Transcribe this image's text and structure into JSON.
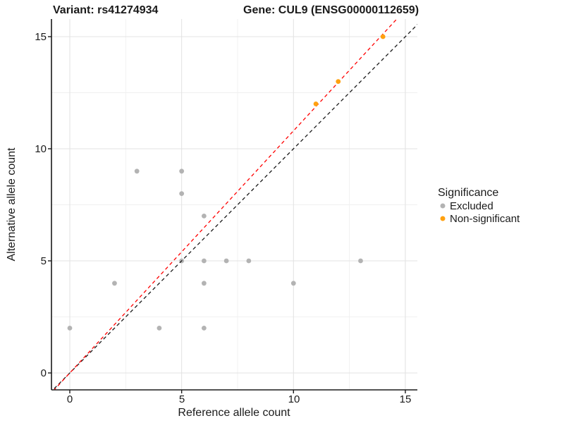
{
  "titles": {
    "variant": "Variant: rs41274934",
    "gene": "Gene: CUL9 (ENSG00000112659)"
  },
  "chart_data": {
    "type": "scatter",
    "title_left": "Variant: rs41274934",
    "title_right": "Gene: CUL9 (ENSG00000112659)",
    "xlabel": "Reference allele count",
    "ylabel": "Alternative allele count",
    "xlim": [
      -0.82,
      15.55
    ],
    "ylim": [
      -0.75,
      15.79
    ],
    "xticks": [
      0,
      5,
      10,
      15
    ],
    "yticks": [
      0,
      5,
      10,
      15
    ],
    "minor_gridlines_x": [
      2.5,
      7.5,
      12.5
    ],
    "minor_gridlines_y": [
      2.5,
      7.5,
      12.5
    ],
    "grid": "on",
    "series": [
      {
        "name": "Excluded",
        "color": "#B3B3B3",
        "points": [
          [
            0,
            2
          ],
          [
            2,
            4
          ],
          [
            3,
            9
          ],
          [
            4,
            2
          ],
          [
            5,
            5
          ],
          [
            5,
            8
          ],
          [
            5,
            9
          ],
          [
            6,
            2
          ],
          [
            6,
            4
          ],
          [
            6,
            5
          ],
          [
            6,
            7
          ],
          [
            7,
            5
          ],
          [
            8,
            5
          ],
          [
            10,
            4
          ],
          [
            13,
            5
          ]
        ]
      },
      {
        "name": "Non-significant",
        "color": "#FFA110",
        "points": [
          [
            11,
            12
          ],
          [
            12,
            13
          ],
          [
            14,
            15
          ]
        ]
      }
    ],
    "lines": [
      {
        "name": "identity-line",
        "style": "dashed",
        "color": "#1a1a1a",
        "slope": 1.0,
        "intercept": 0
      },
      {
        "name": "fit-line",
        "style": "dashed",
        "color": "#FF0000",
        "slope": 1.08,
        "intercept": 0
      }
    ],
    "legend": {
      "title": "Significance",
      "position": "right",
      "entries": [
        {
          "label": "Excluded",
          "color": "#B3B3B3"
        },
        {
          "label": "Non-significant",
          "color": "#FFA110"
        }
      ]
    },
    "colors": {
      "major_grid": "#E3E3E3",
      "minor_grid": "#F0F0F0",
      "axis": "#1a1a1a"
    }
  }
}
